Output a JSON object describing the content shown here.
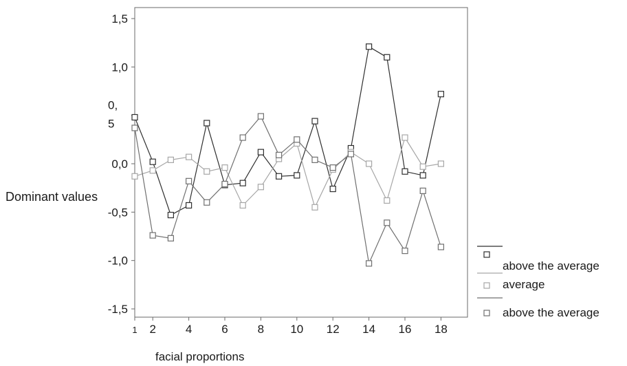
{
  "chart_data": {
    "type": "line",
    "xlabel": "facial proportions",
    "ylabel": "Dominant values",
    "ylim": [
      -1.5,
      1.5
    ],
    "xlim": [
      1,
      19
    ],
    "grid": false,
    "legend_position": "right",
    "y_ticks": [
      {
        "value": 1.5,
        "label": "1,5"
      },
      {
        "value": 1.0,
        "label": "1,0"
      },
      {
        "value": 0.5,
        "label": "0,\n5"
      },
      {
        "value": 0.0,
        "label": "0,0"
      },
      {
        "value": -0.5,
        "label": "-0,5"
      },
      {
        "value": -1.0,
        "label": "-1,0"
      },
      {
        "value": -1.5,
        "label": "-1,5"
      }
    ],
    "x_ticks": [
      {
        "value": 1,
        "label": "1"
      },
      {
        "value": 2,
        "label": "2"
      },
      {
        "value": 4,
        "label": "4"
      },
      {
        "value": 6,
        "label": "6"
      },
      {
        "value": 8,
        "label": "8"
      },
      {
        "value": 10,
        "label": "10"
      },
      {
        "value": 12,
        "label": "12"
      },
      {
        "value": 14,
        "label": "14"
      },
      {
        "value": 16,
        "label": "16"
      },
      {
        "value": 18,
        "label": "18"
      }
    ],
    "x": [
      1,
      2,
      3,
      4,
      5,
      6,
      7,
      8,
      9,
      10,
      11,
      12,
      13,
      14,
      15,
      16,
      17,
      18
    ],
    "series": [
      {
        "name": "above the average",
        "color": "#2e2e2e",
        "values": [
          0.48,
          0.02,
          -0.53,
          -0.43,
          0.42,
          -0.22,
          -0.2,
          0.12,
          -0.13,
          -0.12,
          0.44,
          -0.26,
          0.16,
          1.21,
          1.1,
          -0.08,
          -0.12,
          0.72
        ]
      },
      {
        "name": "average",
        "color": "#a6a6a6",
        "values": [
          -0.13,
          -0.07,
          0.04,
          0.07,
          -0.08,
          -0.04,
          -0.43,
          -0.24,
          0.05,
          0.21,
          -0.45,
          -0.06,
          0.12,
          0.0,
          -0.38,
          0.27,
          -0.03,
          0.0
        ]
      },
      {
        "name": "above the average",
        "color": "#6f6f6f",
        "values": [
          0.37,
          -0.74,
          -0.77,
          -0.18,
          -0.4,
          -0.21,
          0.27,
          0.49,
          0.09,
          0.25,
          0.04,
          -0.04,
          0.1,
          -1.03,
          -0.61,
          -0.9,
          -0.28,
          -0.86
        ]
      }
    ]
  }
}
